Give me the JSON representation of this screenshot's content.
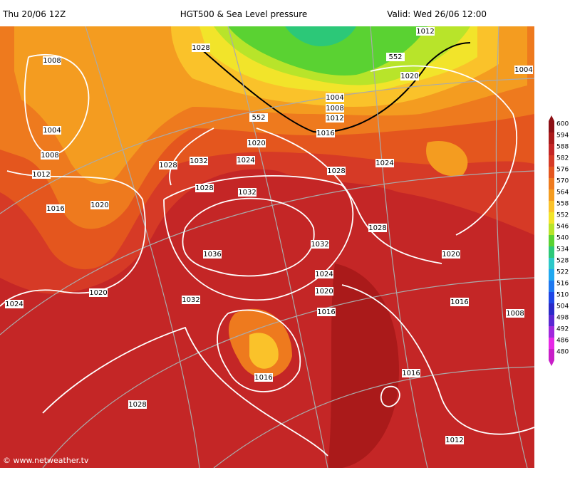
{
  "header": {
    "left": "Thu 20/06 12Z",
    "title": "HGT500 & Sea Level pressure",
    "right": "Valid: Wed 26/06 12:00"
  },
  "colorbar": {
    "ticks": [
      600,
      594,
      588,
      582,
      576,
      570,
      564,
      558,
      552,
      546,
      540,
      534,
      528,
      522,
      516,
      510,
      504,
      498,
      492,
      486,
      480
    ],
    "colors": [
      "#8c0f14",
      "#aa1a1a",
      "#c42626",
      "#d63a26",
      "#e4561e",
      "#ee7a1e",
      "#f49c20",
      "#fac22a",
      "#f2e42a",
      "#b8e42a",
      "#5ad232",
      "#2cc878",
      "#2cc8c8",
      "#20a8f0",
      "#1e78f0",
      "#1e46e6",
      "#2a2ac8",
      "#5a28d2",
      "#a028dc",
      "#e628e6",
      "#c81ec8"
    ]
  },
  "isobar_labels": [
    "1008",
    "1028",
    "1012",
    "1004",
    "1020",
    "1004",
    "1008",
    "1012",
    "552",
    "1016",
    "552",
    "1004",
    "1020",
    "1008",
    "1032",
    "1024",
    "1028",
    "1024",
    "1028",
    "1012",
    "1028",
    "1032",
    "1016",
    "1020",
    "1028",
    "1032",
    "1036",
    "1020",
    "1024",
    "1032",
    "1020",
    "1016",
    "1008",
    "1024",
    "1020",
    "1016",
    "1016",
    "1016",
    "1028",
    "1012"
  ],
  "footer": "© www.netweather.tv"
}
